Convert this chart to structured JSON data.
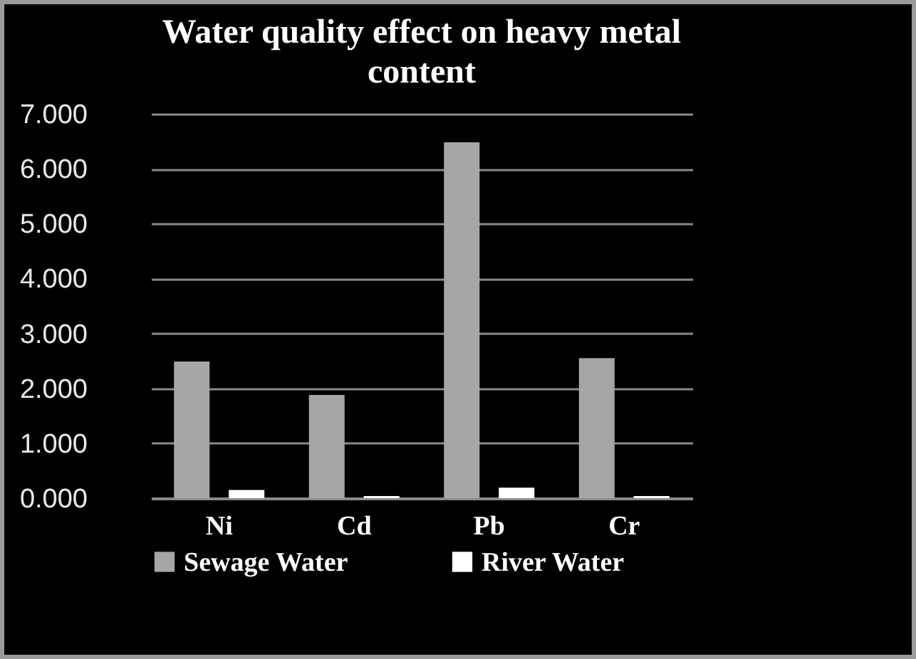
{
  "chart_data": {
    "type": "bar",
    "title": "Water quality effect on heavy metal content",
    "categories": [
      "Ni",
      "Cd",
      "Pb",
      "Cr"
    ],
    "series": [
      {
        "name": "Sewage Water",
        "color": "#a6a6a6",
        "values": [
          2.49,
          1.88,
          6.48,
          2.55
        ]
      },
      {
        "name": "River Water",
        "color": "#ffffff",
        "values": [
          0.15,
          0.04,
          0.19,
          0.04
        ]
      }
    ],
    "ylim": [
      0,
      7
    ],
    "yticks": [
      {
        "value": 0,
        "label": "0.000"
      },
      {
        "value": 1,
        "label": "1.000"
      },
      {
        "value": 2,
        "label": "2.000"
      },
      {
        "value": 3,
        "label": "3.000"
      },
      {
        "value": 4,
        "label": "4.000"
      },
      {
        "value": 5,
        "label": "5.000"
      },
      {
        "value": 6,
        "label": "6.000"
      },
      {
        "value": 7,
        "label": "7.000"
      }
    ],
    "grid": "y",
    "legend": "bottom"
  }
}
